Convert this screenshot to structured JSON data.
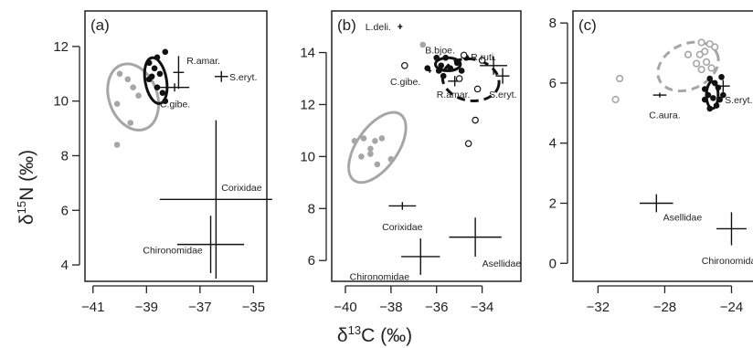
{
  "figure": {
    "y_axis_label": {
      "delta": "δ",
      "sup": "15",
      "rest": "N (‰)"
    },
    "x_axis_label": {
      "delta": "δ",
      "sup": "13",
      "rest": "C (‰)"
    }
  },
  "colors": {
    "black": "#111111",
    "grey": "#a6a6a6",
    "axis": "#222222"
  },
  "chart_data": [
    {
      "type": "scatter",
      "panel_label": "(a)",
      "xlim": [
        -41.3,
        -34.5
      ],
      "ylim": [
        3.4,
        13.3
      ],
      "xticks": [
        -41,
        -39,
        -37,
        -35
      ],
      "yticks": [
        4,
        6,
        8,
        10,
        12
      ],
      "grid": false,
      "series": [
        {
          "style": "grey-dot",
          "points": [
            [
              -40.0,
              11.0
            ],
            [
              -39.7,
              10.8
            ],
            [
              -39.5,
              10.5
            ],
            [
              -40.1,
              9.9
            ],
            [
              -39.6,
              9.2
            ],
            [
              -40.1,
              8.4
            ],
            [
              -39.3,
              10.2
            ]
          ]
        },
        {
          "style": "black-dot",
          "points": [
            [
              -38.9,
              11.4
            ],
            [
              -38.6,
              11.6
            ],
            [
              -38.3,
              11.8
            ],
            [
              -38.8,
              10.9
            ],
            [
              -38.6,
              10.5
            ],
            [
              -38.4,
              10.3
            ],
            [
              -38.9,
              10.8
            ],
            [
              -38.3,
              10.0
            ],
            [
              -38.7,
              11.2
            ],
            [
              -38.5,
              11.0
            ]
          ]
        }
      ],
      "ellipses": [
        {
          "style": "grey",
          "cx": -39.5,
          "cy": 10.15,
          "rx": 0.9,
          "ry": 1.25,
          "angle": -20
        },
        {
          "style": "black",
          "cx": -38.65,
          "cy": 10.75,
          "rx": 0.4,
          "ry": 0.85,
          "angle": -10
        }
      ],
      "crosses": [
        {
          "x": -37.8,
          "y": 11.05,
          "xerr": 0.2,
          "yerr": 0.6
        },
        {
          "x": -37.95,
          "y": 10.5,
          "xerr": 0.55,
          "yerr": 0.15
        },
        {
          "x": -36.2,
          "y": 10.9,
          "xerr": 0.25,
          "yerr": 0.2
        },
        {
          "x": -36.4,
          "y": 6.4,
          "xerr": 2.1,
          "yerr": 2.9
        },
        {
          "x": -36.6,
          "y": 4.75,
          "xerr": 1.25,
          "yerr": 1.05
        }
      ],
      "labels": [
        {
          "text": "R.amar.",
          "x": -37.5,
          "y": 11.5,
          "anchor": "start"
        },
        {
          "text": "S.eryt.",
          "x": -35.9,
          "y": 10.9,
          "anchor": "start"
        },
        {
          "text": "C.gibe.",
          "x": -38.5,
          "y": 9.9,
          "anchor": "start"
        },
        {
          "text": "Corixidae",
          "x": -36.2,
          "y": 6.85,
          "anchor": "start"
        },
        {
          "text": "Chironomidae",
          "x": -36.9,
          "y": 4.55,
          "anchor": "end"
        }
      ]
    },
    {
      "type": "scatter",
      "panel_label": "(b)",
      "xlim": [
        -40.6,
        -32.3
      ],
      "ylim": [
        5.2,
        15.6
      ],
      "xticks": [
        -40,
        -38,
        -36,
        -34
      ],
      "yticks": [
        6,
        8,
        10,
        12,
        14
      ],
      "grid": false,
      "series": [
        {
          "style": "grey-dot",
          "points": [
            [
              -39.6,
              10.6
            ],
            [
              -39.2,
              10.7
            ],
            [
              -38.9,
              10.3
            ],
            [
              -38.7,
              10.6
            ],
            [
              -38.4,
              10.7
            ],
            [
              -38.9,
              10.1
            ],
            [
              -38.6,
              9.7
            ],
            [
              -38.0,
              9.9
            ],
            [
              -36.6,
              14.3
            ],
            [
              -39.3,
              10.0
            ]
          ]
        },
        {
          "style": "black-dot",
          "points": [
            [
              -36.0,
              13.8
            ],
            [
              -35.8,
              13.5
            ],
            [
              -35.6,
              13.8
            ],
            [
              -35.9,
              13.3
            ],
            [
              -35.4,
              13.4
            ],
            [
              -35.1,
              13.6
            ],
            [
              -34.9,
              13.3
            ],
            [
              -36.4,
              13.4
            ],
            [
              -35.7,
              13.1
            ],
            [
              -34.7,
              13.8
            ]
          ]
        },
        {
          "style": "open",
          "points": [
            [
              -34.8,
              13.9
            ],
            [
              -37.4,
              13.5
            ],
            [
              -34.2,
              12.6
            ],
            [
              -34.3,
              11.4
            ],
            [
              -34.6,
              10.5
            ],
            [
              -35.0,
              13.0
            ],
            [
              -34.0,
              13.7
            ]
          ]
        }
      ],
      "ellipses": [
        {
          "style": "grey",
          "cx": -38.6,
          "cy": 10.35,
          "rx": 0.9,
          "ry": 1.55,
          "angle": 35
        },
        {
          "style": "black",
          "cx": -35.5,
          "cy": 13.55,
          "rx": 0.55,
          "ry": 0.25,
          "angle": 0
        },
        {
          "style": "black-dashed",
          "cx": -34.5,
          "cy": 12.95,
          "rx": 1.25,
          "ry": 0.8,
          "angle": 10
        }
      ],
      "crosses": [
        {
          "x": -37.6,
          "y": 15.0,
          "xerr": 0.1,
          "yerr": 0.1
        },
        {
          "x": -36.3,
          "y": 13.3,
          "xerr": 0.08,
          "yerr": 0.08
        },
        {
          "x": -35.2,
          "y": 12.9,
          "xerr": 0.3,
          "yerr": 0.2
        },
        {
          "x": -33.5,
          "y": 13.5,
          "xerr": 0.6,
          "yerr": 0.35
        },
        {
          "x": -33.1,
          "y": 13.1,
          "xerr": 0.3,
          "yerr": 0.3
        },
        {
          "x": -37.5,
          "y": 8.1,
          "xerr": 0.6,
          "yerr": 0.15
        },
        {
          "x": -36.7,
          "y": 6.15,
          "xerr": 0.85,
          "yerr": 0.7
        },
        {
          "x": -34.3,
          "y": 6.9,
          "xerr": 1.15,
          "yerr": 0.75
        }
      ],
      "labels": [
        {
          "text": "L.deli.",
          "x": -38.0,
          "y": 15.0,
          "anchor": "end"
        },
        {
          "text": "B.bjoe.",
          "x": -36.5,
          "y": 14.1,
          "anchor": "start"
        },
        {
          "text": "R.ruti.",
          "x": -34.5,
          "y": 13.85,
          "anchor": "start"
        },
        {
          "text": "C.gibe.",
          "x": -36.7,
          "y": 12.9,
          "anchor": "end"
        },
        {
          "text": "R.amar.",
          "x": -36.0,
          "y": 12.4,
          "anchor": "start"
        },
        {
          "text": "S.eryt.",
          "x": -33.7,
          "y": 12.4,
          "anchor": "start"
        },
        {
          "text": "Corixidae",
          "x": -37.5,
          "y": 7.3,
          "anchor": "middle"
        },
        {
          "text": "Chironomidae",
          "x": -38.5,
          "y": 5.4,
          "anchor": "middle"
        },
        {
          "text": "Asellidae",
          "x": -34.0,
          "y": 5.9,
          "anchor": "start"
        }
      ]
    },
    {
      "type": "scatter",
      "panel_label": "(c)",
      "xlim": [
        -33.5,
        -22
      ],
      "ylim": [
        -0.6,
        8.4
      ],
      "xticks": [
        -32,
        -28,
        -24
      ],
      "yticks": [
        0,
        2,
        4,
        6,
        8
      ],
      "grid": false,
      "series": [
        {
          "style": "grey-open",
          "points": [
            [
              -30.7,
              6.15
            ],
            [
              -30.95,
              5.45
            ],
            [
              -26.6,
              6.95
            ],
            [
              -25.8,
              7.35
            ],
            [
              -25.9,
              6.95
            ],
            [
              -25.6,
              7.05
            ],
            [
              -26.1,
              6.65
            ],
            [
              -25.8,
              6.45
            ],
            [
              -25.5,
              6.7
            ],
            [
              -25.3,
              7.3
            ],
            [
              -25.0,
              7.2
            ],
            [
              -25.2,
              6.5
            ]
          ]
        },
        {
          "style": "black-dot",
          "points": [
            [
              -25.3,
              6.15
            ],
            [
              -25.0,
              6.0
            ],
            [
              -24.8,
              5.85
            ],
            [
              -25.4,
              5.6
            ],
            [
              -25.1,
              5.5
            ],
            [
              -24.7,
              5.45
            ],
            [
              -25.6,
              5.45
            ],
            [
              -24.9,
              5.25
            ],
            [
              -25.3,
              5.15
            ],
            [
              -24.6,
              6.2
            ],
            [
              -25.6,
              5.8
            ],
            [
              -24.5,
              5.6
            ]
          ]
        }
      ],
      "ellipses": [
        {
          "style": "grey-dashed",
          "cx": -26.6,
          "cy": 6.55,
          "rx": 1.9,
          "ry": 0.75,
          "angle": -25
        },
        {
          "style": "black",
          "cx": -25.15,
          "cy": 5.6,
          "rx": 0.35,
          "ry": 0.45,
          "angle": 0
        }
      ],
      "crosses": [
        {
          "x": -28.3,
          "y": 5.6,
          "xerr": 0.4,
          "yerr": 0.08
        },
        {
          "x": -24.5,
          "y": 5.9,
          "xerr": 0.4,
          "yerr": 0.2
        },
        {
          "x": -28.5,
          "y": 2.0,
          "xerr": 1.0,
          "yerr": 0.3
        },
        {
          "x": -24.0,
          "y": 1.15,
          "xerr": 0.9,
          "yerr": 0.55
        }
      ],
      "labels": [
        {
          "text": "C.aura.",
          "x": -28.0,
          "y": 4.95,
          "anchor": "middle"
        },
        {
          "text": "S.eryt.",
          "x": -24.4,
          "y": 5.45,
          "anchor": "start"
        },
        {
          "text": "Asellidae",
          "x": -28.1,
          "y": 1.55,
          "anchor": "start"
        },
        {
          "text": "Chironomidae",
          "x": -24.0,
          "y": 0.1,
          "anchor": "middle"
        }
      ]
    }
  ]
}
